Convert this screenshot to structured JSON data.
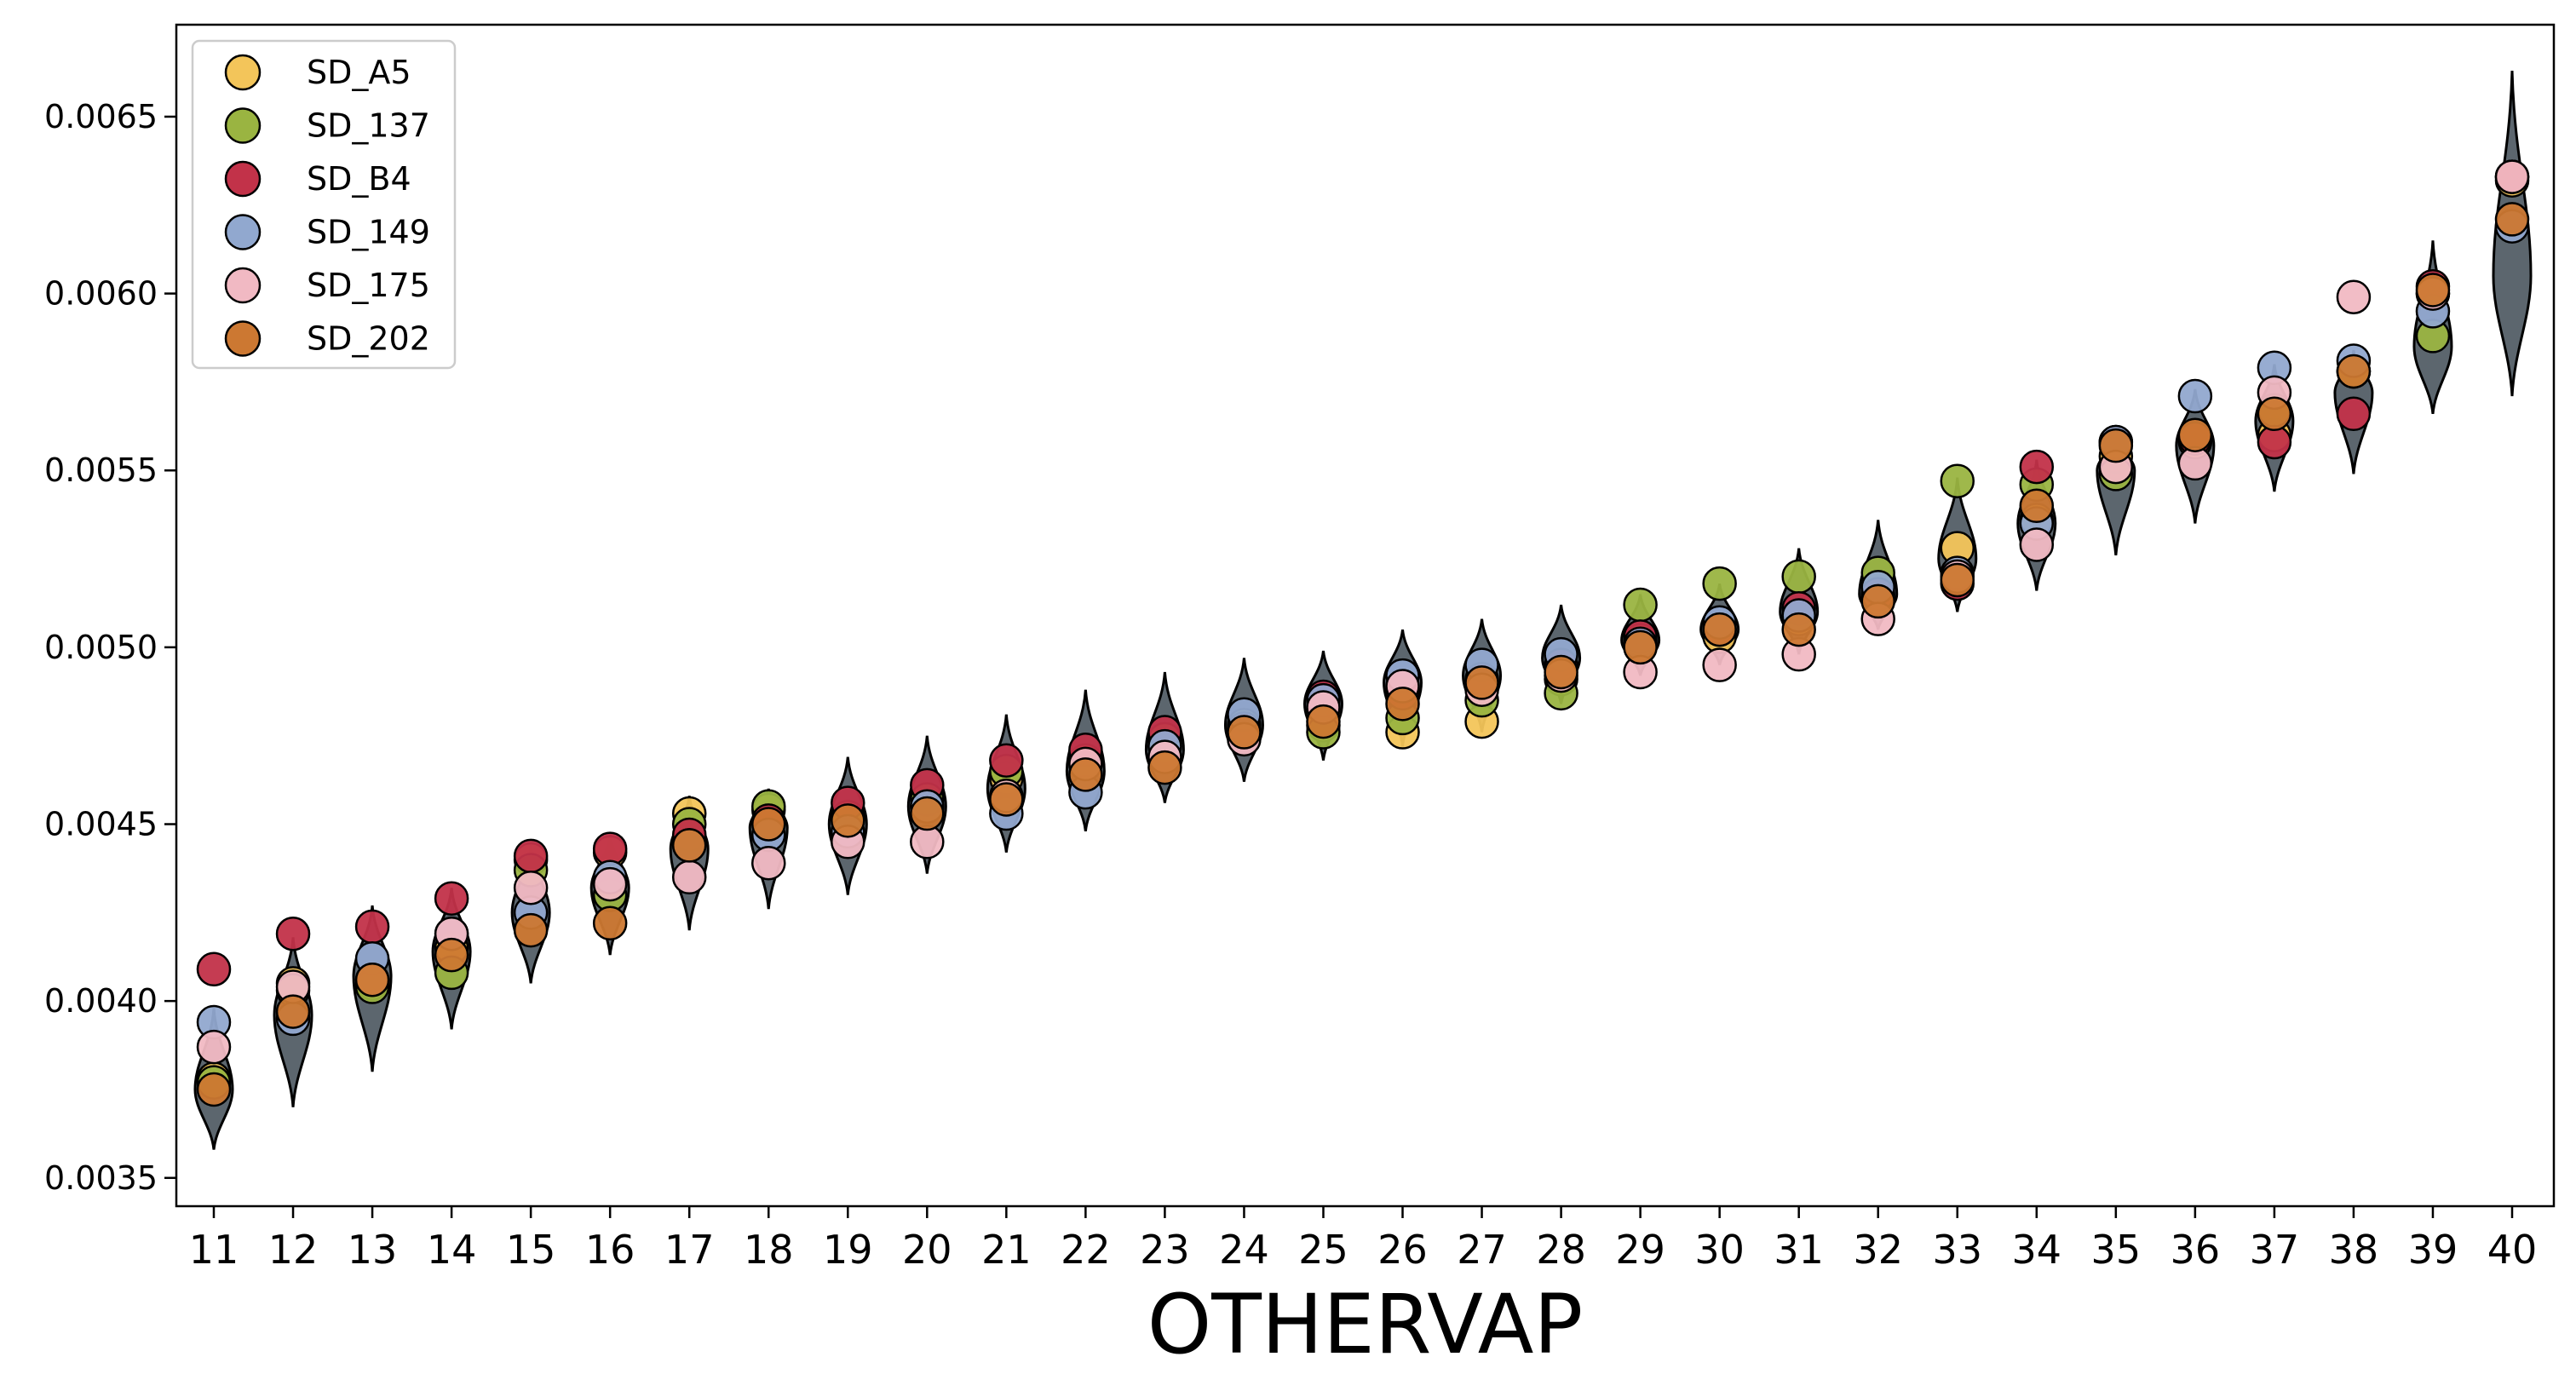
{
  "chart_data": {
    "type": "scatter",
    "title": "",
    "xlabel": "OTHERVAP",
    "ylabel": "",
    "categories": [
      "11",
      "12",
      "13",
      "14",
      "15",
      "16",
      "17",
      "18",
      "19",
      "20",
      "21",
      "22",
      "23",
      "24",
      "25",
      "26",
      "27",
      "28",
      "29",
      "30",
      "31",
      "32",
      "33",
      "34",
      "35",
      "36",
      "37",
      "38",
      "39",
      "40"
    ],
    "yticks": [
      "0.0035",
      "0.0040",
      "0.0045",
      "0.0050",
      "0.0055",
      "0.0060",
      "0.0065"
    ],
    "ylim": [
      0.00342,
      0.00676
    ],
    "grid": false,
    "legend_position": "top-left",
    "violin_color": "#5c666e",
    "violins": [
      {
        "center": 0.00375,
        "lo": 0.00358,
        "hi": 0.00398
      },
      {
        "center": 0.00396,
        "lo": 0.0037,
        "hi": 0.00418
      },
      {
        "center": 0.00407,
        "lo": 0.0038,
        "hi": 0.00427
      },
      {
        "center": 0.00414,
        "lo": 0.00392,
        "hi": 0.00432
      },
      {
        "center": 0.00425,
        "lo": 0.00405,
        "hi": 0.00444
      },
      {
        "center": 0.00432,
        "lo": 0.00413,
        "hi": 0.00447
      },
      {
        "center": 0.00443,
        "lo": 0.0042,
        "hi": 0.00458
      },
      {
        "center": 0.00449,
        "lo": 0.00426,
        "hi": 0.0046
      },
      {
        "center": 0.0045,
        "lo": 0.0043,
        "hi": 0.00469
      },
      {
        "center": 0.00455,
        "lo": 0.00436,
        "hi": 0.00475
      },
      {
        "center": 0.0046,
        "lo": 0.00442,
        "hi": 0.00481
      },
      {
        "center": 0.00465,
        "lo": 0.00448,
        "hi": 0.00488
      },
      {
        "center": 0.00471,
        "lo": 0.00456,
        "hi": 0.00493
      },
      {
        "center": 0.00478,
        "lo": 0.00462,
        "hi": 0.00497
      },
      {
        "center": 0.00484,
        "lo": 0.00468,
        "hi": 0.00499
      },
      {
        "center": 0.0049,
        "lo": 0.00472,
        "hi": 0.00505
      },
      {
        "center": 0.00492,
        "lo": 0.00476,
        "hi": 0.00508
      },
      {
        "center": 0.00497,
        "lo": 0.00484,
        "hi": 0.00512
      },
      {
        "center": 0.00502,
        "lo": 0.00492,
        "hi": 0.00515
      },
      {
        "center": 0.00505,
        "lo": 0.00495,
        "hi": 0.00518
      },
      {
        "center": 0.0051,
        "lo": 0.00498,
        "hi": 0.00528
      },
      {
        "center": 0.00515,
        "lo": 0.00505,
        "hi": 0.00536
      },
      {
        "center": 0.00525,
        "lo": 0.0051,
        "hi": 0.00548
      },
      {
        "center": 0.00535,
        "lo": 0.00516,
        "hi": 0.00553
      },
      {
        "center": 0.0055,
        "lo": 0.00526,
        "hi": 0.0056
      },
      {
        "center": 0.00557,
        "lo": 0.00535,
        "hi": 0.00573
      },
      {
        "center": 0.00564,
        "lo": 0.00544,
        "hi": 0.0058
      },
      {
        "center": 0.00572,
        "lo": 0.00549,
        "hi": 0.00584
      },
      {
        "center": 0.00585,
        "lo": 0.00566,
        "hi": 0.00615
      },
      {
        "center": 0.00605,
        "lo": 0.00571,
        "hi": 0.00663
      }
    ],
    "series": [
      {
        "name": "SD_A5",
        "color": "#f3c55a",
        "values": [
          0.00378,
          0.00405,
          0.00405,
          0.00415,
          0.0044,
          0.00442,
          0.00453,
          0.00454,
          0.00452,
          0.00455,
          0.00463,
          0.00468,
          0.00472,
          0.00477,
          0.00478,
          0.00476,
          0.00479,
          0.00491,
          0.00502,
          0.00503,
          0.00508,
          0.00514,
          0.00528,
          0.00536,
          0.00554,
          0.00558,
          0.0056,
          0.00578,
          0.006,
          0.00632
        ]
      },
      {
        "name": "SD_137",
        "color": "#9ab441",
        "values": [
          0.00377,
          0.00403,
          0.00404,
          0.00408,
          0.00437,
          0.0043,
          0.0045,
          0.00455,
          0.00452,
          0.00457,
          0.00465,
          0.00467,
          0.00474,
          0.00478,
          0.00476,
          0.0048,
          0.00485,
          0.00487,
          0.00512,
          0.00518,
          0.0052,
          0.00521,
          0.00547,
          0.00546,
          0.00549,
          0.00559,
          0.00567,
          0.00578,
          0.00588,
          0.00633
        ]
      },
      {
        "name": "SD_B4",
        "color": "#c23249",
        "values": [
          0.00409,
          0.00419,
          0.00421,
          0.00429,
          0.00441,
          0.00443,
          0.00447,
          0.00451,
          0.00456,
          0.00461,
          0.00468,
          0.00471,
          0.00476,
          0.00477,
          0.00486,
          0.00487,
          0.00491,
          0.00495,
          0.00503,
          0.00505,
          0.00511,
          0.00515,
          0.00518,
          0.00551,
          0.00558,
          0.00559,
          0.00558,
          0.00566,
          0.00602,
          0.00633
        ]
      },
      {
        "name": "SD_149",
        "color": "#91a8cf",
        "values": [
          0.00394,
          0.00395,
          0.00412,
          0.00419,
          0.00425,
          0.00435,
          0.00444,
          0.00447,
          0.00448,
          0.00455,
          0.00453,
          0.00459,
          0.00472,
          0.00481,
          0.00485,
          0.00492,
          0.00495,
          0.00498,
          0.00501,
          0.00507,
          0.00509,
          0.00517,
          0.00521,
          0.00535,
          0.00558,
          0.00571,
          0.00579,
          0.00581,
          0.00595,
          0.00619
        ]
      },
      {
        "name": "SD_175",
        "color": "#f1b9c3",
        "values": [
          0.00387,
          0.00404,
          0.00406,
          0.00419,
          0.00432,
          0.00433,
          0.00435,
          0.00439,
          0.00445,
          0.00445,
          0.00458,
          0.00467,
          0.00469,
          0.00474,
          0.00483,
          0.00489,
          0.00488,
          0.00492,
          0.00493,
          0.00495,
          0.00498,
          0.00508,
          0.0052,
          0.00529,
          0.00551,
          0.00552,
          0.00572,
          0.00599,
          0.006,
          0.00633
        ]
      },
      {
        "name": "SD_202",
        "color": "#cc7832",
        "values": [
          0.00375,
          0.00397,
          0.00406,
          0.00413,
          0.0042,
          0.00422,
          0.00444,
          0.0045,
          0.00451,
          0.00453,
          0.00457,
          0.00464,
          0.00466,
          0.00476,
          0.00479,
          0.00484,
          0.0049,
          0.00493,
          0.005,
          0.00505,
          0.00505,
          0.00513,
          0.00519,
          0.0054,
          0.00557,
          0.0056,
          0.00566,
          0.00578,
          0.00601,
          0.00621
        ]
      }
    ]
  }
}
